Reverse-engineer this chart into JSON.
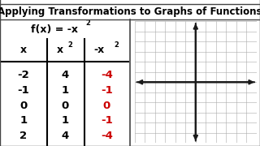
{
  "title": "Applying Transformations to Graphs of Functions",
  "title_fontsize": 8.5,
  "title_fontweight": "bold",
  "background_color": "#ffffff",
  "func_label_main": "f(x) = -x",
  "func_label_exp": "2",
  "header_col1": "x",
  "header_col2": "x",
  "header_col2_exp": "2",
  "header_col3": "-x",
  "header_col3_exp": "2",
  "x_vals": [
    "-2",
    "-1",
    "0",
    "1",
    "2"
  ],
  "x2_vals": [
    "4",
    "1",
    "0",
    "1",
    "4"
  ],
  "neg_x2_vals": [
    "-4",
    "-1",
    "0",
    "-1",
    "-4"
  ],
  "black_color": "#000000",
  "red_color": "#cc0000",
  "grid_color": "#aaaaaa",
  "axis_color": "#1a1a1a",
  "divider_color": "#444444",
  "grid_n": 12,
  "grid_half": 6
}
